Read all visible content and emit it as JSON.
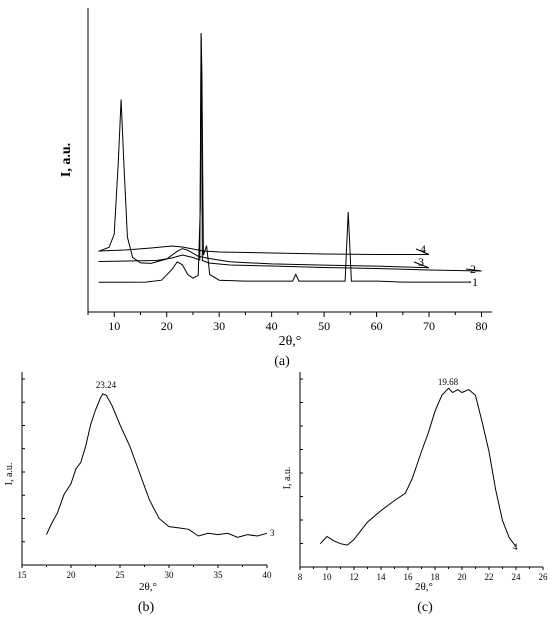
{
  "chart_data": [
    {
      "panel_label": "(a)",
      "type": "line",
      "xlabel": "2θ,°",
      "ylabel": "I, a.u.",
      "xlim": [
        5,
        82
      ],
      "x_ticks": [
        "10",
        "20",
        "30",
        "40",
        "50",
        "60",
        "70",
        "80"
      ],
      "y_ticks_labeled": false,
      "grid": false,
      "series": [
        {
          "name": "1",
          "points": [
            [
              7,
              0.18
            ],
            [
              12,
              0.18
            ],
            [
              16,
              0.2
            ],
            [
              19,
              0.4
            ],
            [
              21,
              1.5
            ],
            [
              22,
              2.3
            ],
            [
              23,
              2.0
            ],
            [
              24,
              1.0
            ],
            [
              25,
              0.6
            ],
            [
              26,
              0.9
            ],
            [
              26.4,
              8
            ],
            [
              26.55,
              26
            ],
            [
              26.7,
              22
            ],
            [
              27,
              3
            ],
            [
              27.6,
              4
            ],
            [
              28.2,
              1
            ],
            [
              30,
              0.4
            ],
            [
              35,
              0.3
            ],
            [
              44,
              0.3
            ],
            [
              44.6,
              1.0
            ],
            [
              45.2,
              0.3
            ],
            [
              54,
              0.3
            ],
            [
              54.6,
              7.5
            ],
            [
              55.2,
              0.3
            ],
            [
              60,
              0.3
            ],
            [
              65,
              0.2
            ],
            [
              78,
              0.2
            ]
          ]
        },
        {
          "name": "2",
          "points": [
            [
              7,
              4.3
            ],
            [
              18,
              4.5
            ],
            [
              21,
              5.0
            ],
            [
              23,
              5.6
            ],
            [
              25,
              5.1
            ],
            [
              26.3,
              4.6
            ],
            [
              26.55,
              50
            ],
            [
              26.8,
              4.5
            ],
            [
              28,
              4.0
            ],
            [
              32,
              3.6
            ],
            [
              40,
              3.4
            ],
            [
              50,
              3.1
            ],
            [
              60,
              2.9
            ],
            [
              70,
              2.6
            ],
            [
              80,
              2.4
            ]
          ]
        },
        {
          "name": "3",
          "points": [
            [
              7,
              5.4
            ],
            [
              9,
              6.1
            ],
            [
              10,
              8.5
            ],
            [
              10.8,
              22
            ],
            [
              11.3,
              33
            ],
            [
              11.8,
              22
            ],
            [
              12.5,
              8
            ],
            [
              13.5,
              4.3
            ],
            [
              15,
              3.3
            ],
            [
              17,
              3.2
            ],
            [
              20,
              4.0
            ],
            [
              22,
              5.4
            ],
            [
              23,
              5.9
            ],
            [
              24,
              5.6
            ],
            [
              26,
              4.5
            ],
            [
              28,
              4.1
            ],
            [
              32,
              3.5
            ],
            [
              40,
              3.1
            ],
            [
              50,
              2.9
            ],
            [
              60,
              2.7
            ],
            [
              70,
              2.4
            ]
          ]
        },
        {
          "name": "4",
          "points": [
            [
              7,
              7.0
            ],
            [
              12,
              7.2
            ],
            [
              17,
              7.6
            ],
            [
              21,
              8.0
            ],
            [
              23,
              7.8
            ],
            [
              25,
              7.4
            ],
            [
              27,
              7.0
            ],
            [
              30,
              6.8
            ],
            [
              40,
              6.6
            ],
            [
              50,
              6.4
            ],
            [
              60,
              6.3
            ],
            [
              70,
              6.3
            ]
          ]
        }
      ]
    },
    {
      "panel_label": "(b)",
      "type": "line",
      "xlabel": "2θ,°",
      "ylabel": "I, a.u.",
      "xlim": [
        15,
        40
      ],
      "x_ticks": [
        "15",
        "20",
        "25",
        "30",
        "35",
        "40"
      ],
      "y_ticks_labeled": false,
      "annotations": [
        {
          "text": "23.24"
        }
      ],
      "grid": false,
      "series": [
        {
          "name": "3",
          "points": [
            [
              17.5,
              0.4
            ],
            [
              18,
              1.2
            ],
            [
              18.6,
              2.0
            ],
            [
              19.3,
              3.4
            ],
            [
              20,
              4.2
            ],
            [
              20.5,
              5.3
            ],
            [
              21,
              5.8
            ],
            [
              21.5,
              7.0
            ],
            [
              22,
              8.6
            ],
            [
              22.5,
              9.7
            ],
            [
              23,
              10.6
            ],
            [
              23.24,
              10.9
            ],
            [
              23.6,
              10.8
            ],
            [
              24.2,
              10.0
            ],
            [
              25,
              8.6
            ],
            [
              26,
              7.0
            ],
            [
              27,
              5.0
            ],
            [
              28,
              3.0
            ],
            [
              29,
              1.6
            ],
            [
              30,
              1.0
            ],
            [
              31,
              0.9
            ],
            [
              32,
              0.8
            ],
            [
              33,
              0.3
            ],
            [
              34,
              0.5
            ],
            [
              35,
              0.4
            ],
            [
              36,
              0.5
            ],
            [
              37,
              0.2
            ],
            [
              38,
              0.4
            ],
            [
              39,
              0.3
            ],
            [
              40,
              0.5
            ]
          ]
        }
      ]
    },
    {
      "panel_label": "(c)",
      "type": "line",
      "xlabel": "2θ,°",
      "ylabel": "I, a.u.",
      "xlim": [
        8,
        26
      ],
      "x_ticks": [
        "8",
        "10",
        "12",
        "14",
        "16",
        "18",
        "20",
        "22",
        "24",
        "26"
      ],
      "y_ticks_labeled": false,
      "annotations": [
        {
          "text": "19.68"
        }
      ],
      "grid": false,
      "series": [
        {
          "name": "4",
          "points": [
            [
              9.5,
              0.3
            ],
            [
              10,
              0.8
            ],
            [
              10.5,
              0.5
            ],
            [
              11,
              0.3
            ],
            [
              11.5,
              0.2
            ],
            [
              12,
              0.6
            ],
            [
              12.5,
              1.2
            ],
            [
              13,
              1.8
            ],
            [
              14,
              2.6
            ],
            [
              15,
              3.3
            ],
            [
              15.8,
              3.8
            ],
            [
              16.3,
              4.8
            ],
            [
              17,
              6.7
            ],
            [
              17.5,
              8.0
            ],
            [
              18,
              9.5
            ],
            [
              18.5,
              10.6
            ],
            [
              19,
              11.1
            ],
            [
              19.3,
              10.8
            ],
            [
              19.68,
              11.0
            ],
            [
              20,
              10.8
            ],
            [
              20.5,
              11.0
            ],
            [
              21,
              10.6
            ],
            [
              21.5,
              8.7
            ],
            [
              22,
              6.7
            ],
            [
              22.5,
              4.0
            ],
            [
              23,
              1.9
            ],
            [
              23.5,
              0.7
            ],
            [
              24,
              0.1
            ]
          ]
        }
      ]
    }
  ]
}
